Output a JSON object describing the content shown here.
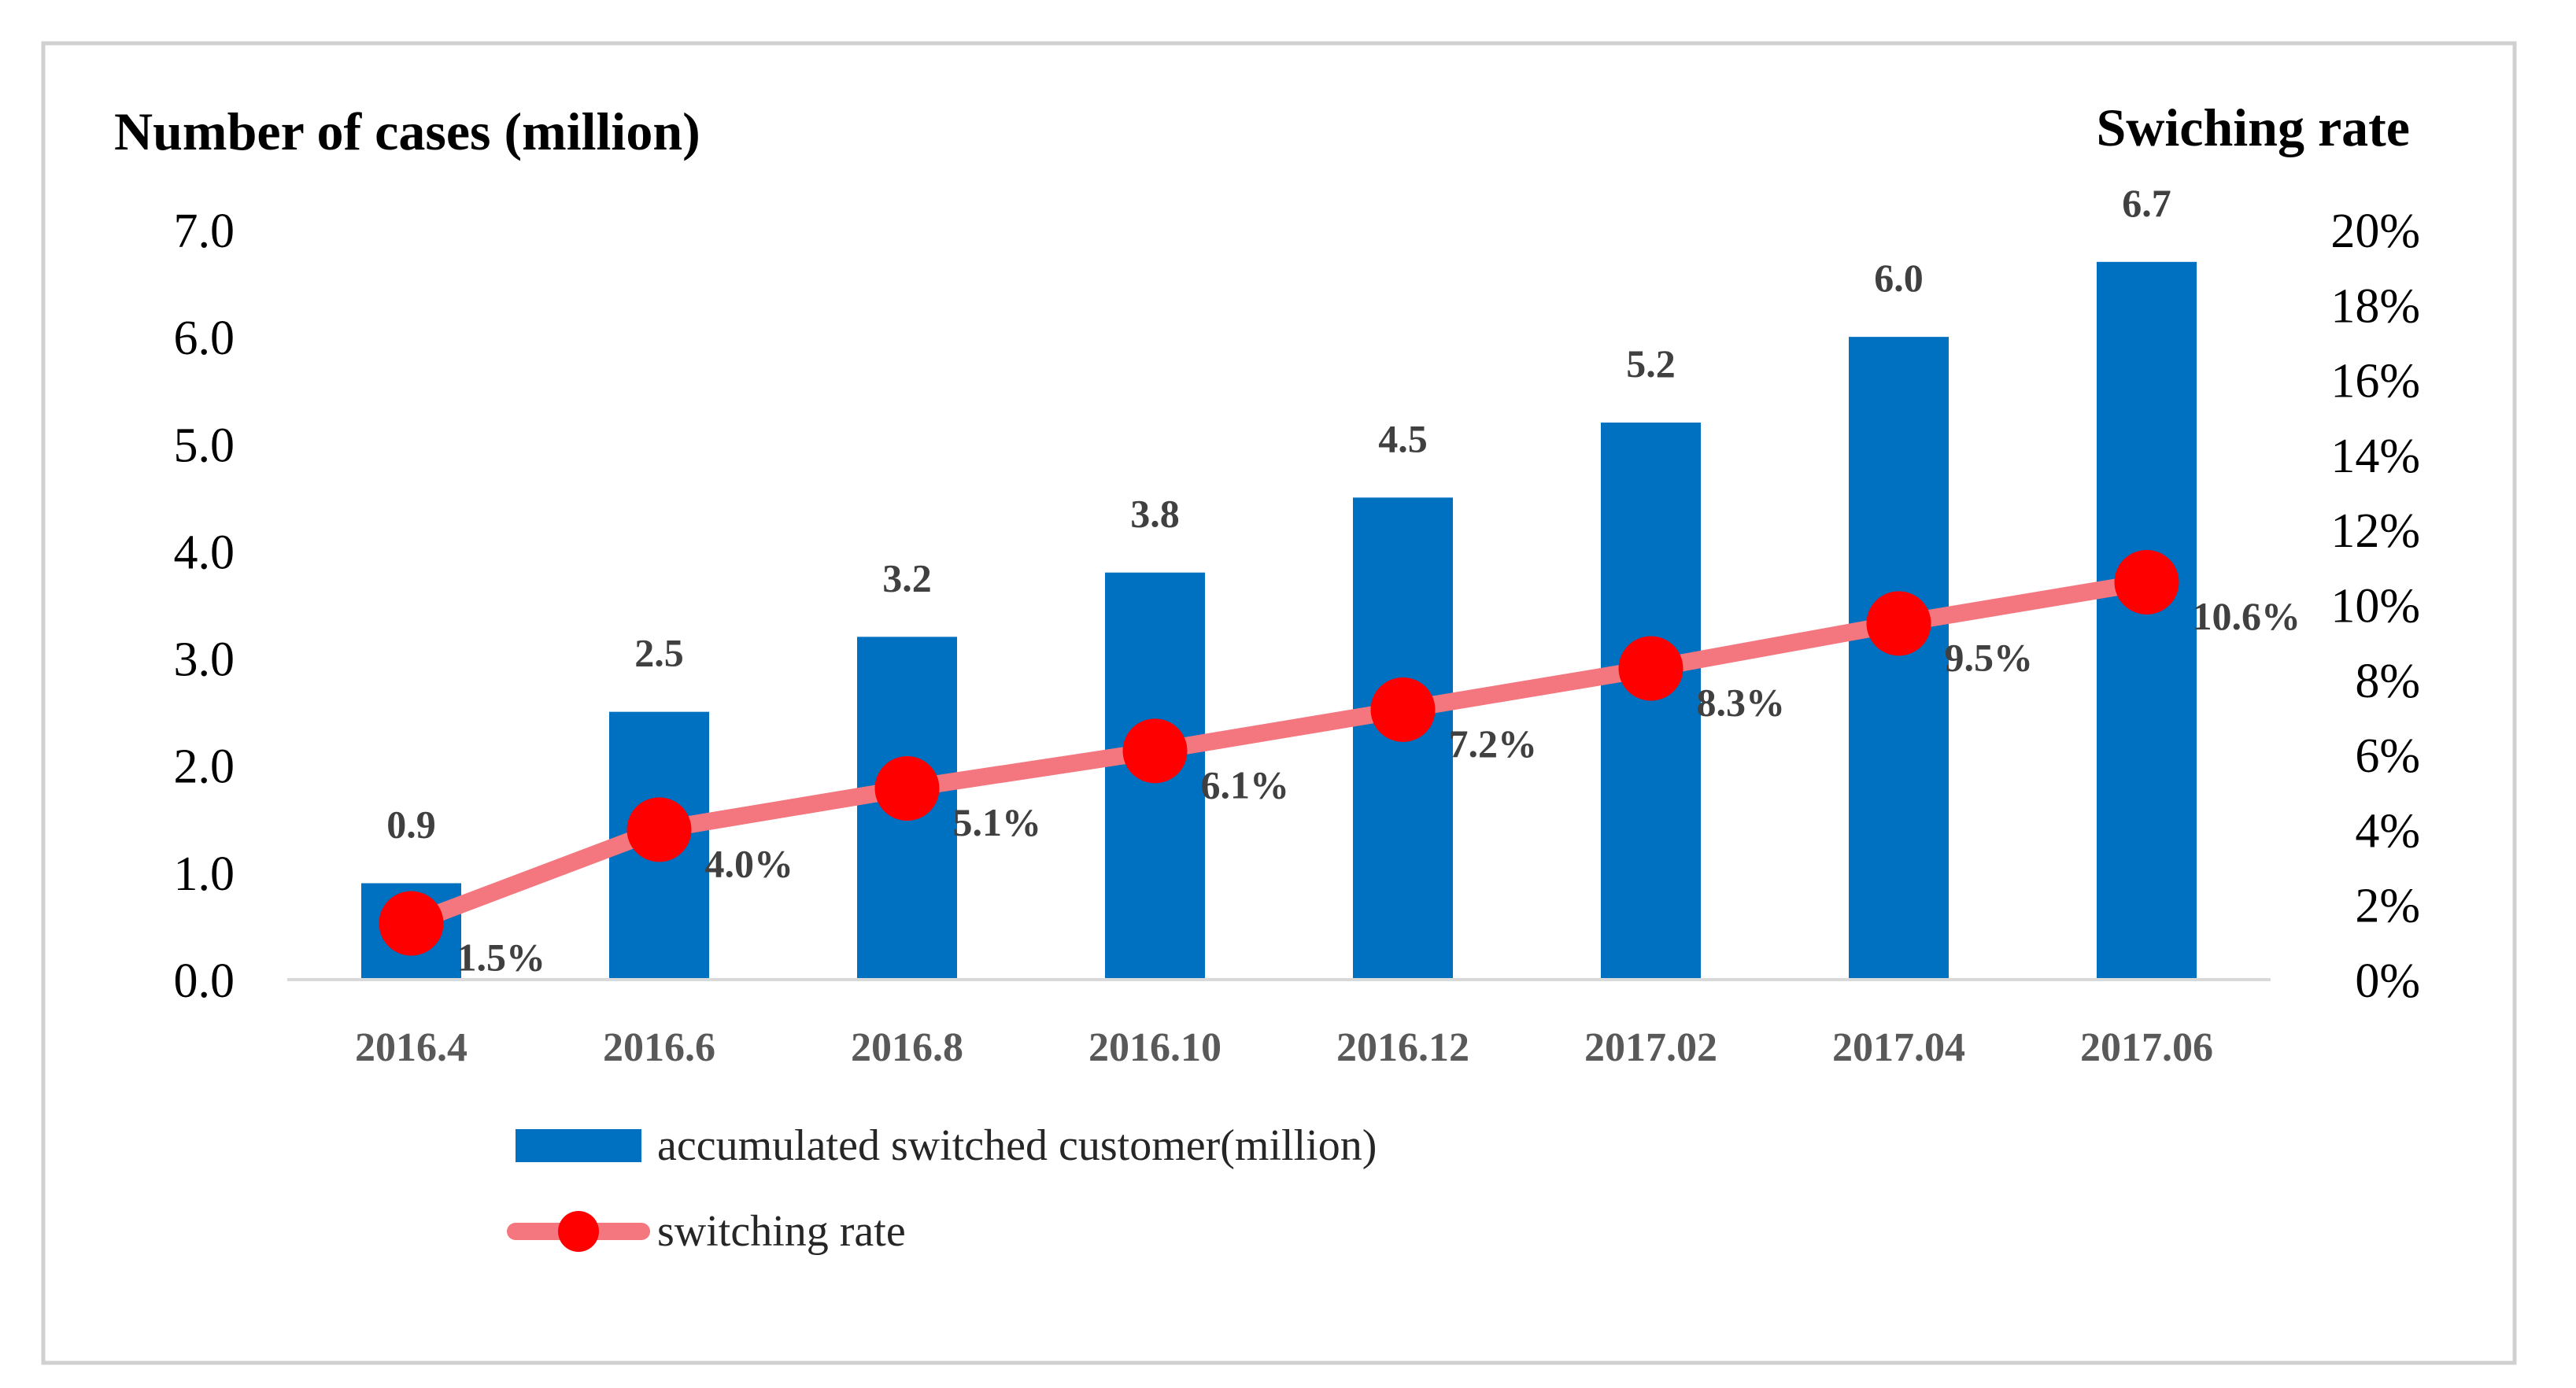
{
  "chart_data": {
    "type": "bar",
    "categories": [
      "2016.4",
      "2016.6",
      "2016.8",
      "2016.10",
      "2016.12",
      "2017.02",
      "2017.04",
      "2017.06"
    ],
    "series": [
      {
        "name": "accumulated switched customer(million)",
        "type": "bar",
        "axis": "left",
        "values": [
          0.9,
          2.5,
          3.2,
          3.8,
          4.5,
          5.2,
          6.0,
          6.7
        ],
        "labels": [
          "0.9",
          "2.5",
          "3.2",
          "3.8",
          "4.5",
          "5.2",
          "6.0",
          "6.7"
        ],
        "color": "#0070c0"
      },
      {
        "name": "switching rate",
        "type": "line",
        "axis": "right",
        "values": [
          1.5,
          4.0,
          5.1,
          6.1,
          7.2,
          8.3,
          9.5,
          10.6
        ],
        "labels": [
          "1.5%",
          "4.0%",
          "5.1%",
          "6.1%",
          "7.2%",
          "8.3%",
          "9.5%",
          "10.6%"
        ],
        "line_color": "#f4777f",
        "marker_color": "#ff0000"
      }
    ],
    "ylabel": "Number of cases (million)",
    "y2label": "Swiching rate",
    "ylim": [
      0,
      7
    ],
    "y_ticks": [
      "0.0",
      "1.0",
      "2.0",
      "3.0",
      "4.0",
      "5.0",
      "6.0",
      "7.0"
    ],
    "y2lim": [
      0,
      20
    ],
    "y2_ticks": [
      "0%",
      "2%",
      "4%",
      "6%",
      "8%",
      "10%",
      "12%",
      "14%",
      "16%",
      "18%",
      "20%"
    ],
    "legend_position": "bottom-left",
    "grid": false
  }
}
